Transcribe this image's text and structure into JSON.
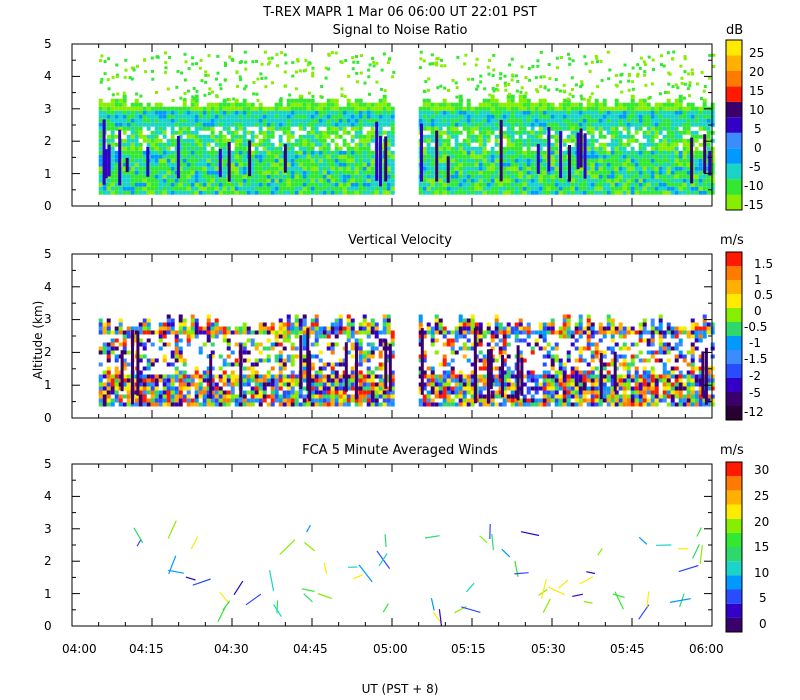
{
  "header": {
    "title": "T-REX   MAPR   1 Mar 06   06:00 UT   22:01   PST"
  },
  "x_axis": {
    "label": "UT  (PST + 8)",
    "ticks": [
      "04:00",
      "04:15",
      "04:30",
      "04:45",
      "05:00",
      "05:15",
      "05:30",
      "05:45",
      "06:00"
    ]
  },
  "y_axis_label": "Altitude (km)",
  "colors": {
    "scale": [
      "#2a0033",
      "#3a006b",
      "#3300c8",
      "#2a4cff",
      "#3a8cff",
      "#0099ff",
      "#1ad4c8",
      "#2fd86a",
      "#33e833",
      "#88ee00",
      "#ffea00",
      "#ffb000",
      "#ff7a00",
      "#ff1a00"
    ]
  },
  "chart_data": [
    {
      "type": "heatmap",
      "title": "Signal to Noise Ratio",
      "ylabel": "",
      "ylim": [
        0,
        5
      ],
      "yticks": [
        "0",
        "1",
        "2",
        "3",
        "4",
        "5"
      ],
      "xlim": [
        "04:00",
        "06:00"
      ],
      "data_gaps": [
        [
          "05:00",
          "05:05"
        ]
      ],
      "colorbar": {
        "unit": "dB",
        "labels": [
          "-15",
          "-10",
          "-5",
          "0",
          "5",
          "10",
          "15",
          "20",
          "25"
        ],
        "colors": [
          "#88ee00",
          "#33e833",
          "#1ad4c8",
          "#0099ff",
          "#3a8cff",
          "#3300c8",
          "#3a006b",
          "#ff1a00",
          "#ff7a00",
          "#ffb000",
          "#ffea00"
        ]
      }
    },
    {
      "type": "heatmap",
      "title": "Vertical Velocity",
      "ylabel": "Altitude (km)",
      "ylim": [
        0,
        5
      ],
      "yticks": [
        "0",
        "1",
        "2",
        "3",
        "4",
        "5"
      ],
      "xlim": [
        "04:00",
        "06:00"
      ],
      "data_gaps": [
        [
          "05:00",
          "05:05"
        ]
      ],
      "colorbar": {
        "unit": "m/s",
        "labels": [
          "-12",
          "-5",
          "-2",
          "-1.5",
          "-1",
          "-0.5",
          "0",
          "0.5",
          "1",
          "1.5"
        ],
        "colors": [
          "#2a0033",
          "#3a006b",
          "#3300c8",
          "#2a4cff",
          "#3a8cff",
          "#0099ff",
          "#2fd86a",
          "#88ee00",
          "#ffea00",
          "#ffb000",
          "#ff7a00",
          "#ff1a00"
        ]
      }
    },
    {
      "type": "scatter",
      "title": "FCA 5 Minute Averaged Winds",
      "ylabel": "",
      "ylim": [
        0,
        5
      ],
      "yticks": [
        "0",
        "1",
        "2",
        "3",
        "4",
        "5"
      ],
      "xlim": [
        "04:00",
        "06:00"
      ],
      "colorbar": {
        "unit": "m/s",
        "labels": [
          "0",
          "5",
          "10",
          "15",
          "20",
          "25",
          "30"
        ],
        "colors": [
          "#3a006b",
          "#3300c8",
          "#2a4cff",
          "#0099ff",
          "#1ad4c8",
          "#2fd86a",
          "#33e833",
          "#88ee00",
          "#ffea00",
          "#ffb000",
          "#ff7a00",
          "#ff1a00"
        ]
      }
    }
  ]
}
